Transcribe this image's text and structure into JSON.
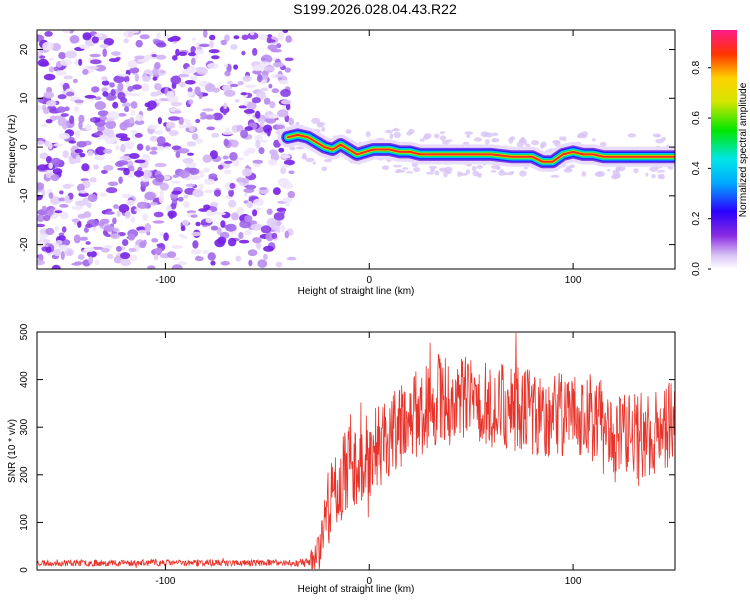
{
  "figure": {
    "title": "S199.2026.028.04.43.R22"
  },
  "chart_data": [
    {
      "type": "heatmap",
      "name": "spectrogram",
      "xlabel": "Height of straight line (km)",
      "ylabel": "Frequency (Hz)",
      "xlim": [
        -163,
        150
      ],
      "ylim": [
        -25,
        24
      ],
      "xticks": [
        -100,
        0,
        100
      ],
      "yticks": [
        -20,
        -10,
        0,
        10,
        20
      ],
      "noise_region_km": [
        -163,
        -40
      ],
      "ridge": {
        "x": [
          -40,
          -35,
          -30,
          -26,
          -22,
          -18,
          -14,
          -10,
          -6,
          -2,
          2,
          6,
          10,
          15,
          20,
          25,
          30,
          40,
          50,
          60,
          70,
          80,
          85,
          90,
          95,
          100,
          105,
          110,
          115,
          120,
          130,
          140,
          150
        ],
        "y": [
          2,
          2.5,
          2,
          1,
          0,
          -0.5,
          0.5,
          -0.5,
          -1.5,
          -1,
          -0.5,
          -0.5,
          -0.5,
          -1,
          -1,
          -1.5,
          -1.5,
          -1.5,
          -1.5,
          -1.5,
          -2,
          -2,
          -3,
          -3,
          -1.5,
          -1,
          -1.5,
          -1.5,
          -2,
          -2,
          -2,
          -2,
          -2
        ]
      }
    },
    {
      "type": "colorbar",
      "name": "amplitude-colorbar",
      "label": "Normalized spectral amplitude",
      "range": [
        0,
        0.95
      ],
      "ticks": [
        0,
        0.2,
        0.4,
        0.6,
        0.8
      ],
      "tick_labels": [
        "0.0",
        "0.2",
        "0.4",
        "0.6",
        "0.8"
      ]
    },
    {
      "type": "line",
      "name": "snr",
      "xlabel": "Height of straight line (km)",
      "ylabel": "SNR (10 * v/v)",
      "xlim": [
        -163,
        150
      ],
      "ylim": [
        0,
        500
      ],
      "xticks": [
        -100,
        0,
        100
      ],
      "yticks": [
        0,
        100,
        200,
        300,
        400,
        500
      ],
      "color": "#e8332a",
      "envelope": {
        "x": [
          -163,
          -130,
          -100,
          -60,
          -40,
          -30,
          -25,
          -20,
          -10,
          0,
          10,
          20,
          30,
          40,
          50,
          60,
          70,
          80,
          90,
          100,
          110,
          115,
          120,
          130,
          140,
          150
        ],
        "mean": [
          15,
          15,
          15,
          15,
          15,
          15,
          40,
          140,
          220,
          240,
          280,
          320,
          350,
          360,
          355,
          345,
          350,
          330,
          320,
          330,
          320,
          300,
          290,
          280,
          290,
          310
        ],
        "amplitude": [
          7,
          7,
          7,
          7,
          7,
          10,
          50,
          80,
          90,
          90,
          90,
          90,
          100,
          100,
          90,
          90,
          100,
          90,
          90,
          90,
          90,
          110,
          90,
          90,
          90,
          90
        ]
      }
    }
  ]
}
